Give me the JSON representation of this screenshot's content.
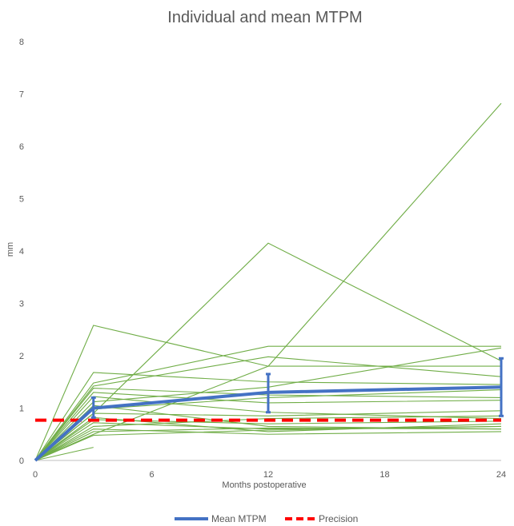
{
  "chart_data": {
    "type": "line",
    "title": "Individual and mean MTPM",
    "xlabel": "Months postoperative",
    "ylabel": "mm",
    "x_ticks": [
      0,
      6,
      12,
      18,
      24
    ],
    "y_ticks": [
      0,
      1,
      2,
      3,
      4,
      5,
      6,
      7,
      8
    ],
    "xlim": [
      0,
      24
    ],
    "ylim": [
      0,
      8
    ],
    "grid": false,
    "legend_position": "bottom",
    "individual_color": "#70ad47",
    "individual_series": [
      {
        "x": [
          0,
          3,
          12,
          24
        ],
        "y": [
          0,
          2.58,
          1.8,
          1.8
        ]
      },
      {
        "x": [
          0,
          3,
          12,
          24
        ],
        "y": [
          0,
          0.9,
          4.15,
          1.9
        ]
      },
      {
        "x": [
          0,
          3,
          12,
          24
        ],
        "y": [
          0,
          0.5,
          1.8,
          6.82
        ]
      },
      {
        "x": [
          0,
          3,
          12,
          24
        ],
        "y": [
          0,
          1.68,
          1.5,
          1.45
        ]
      },
      {
        "x": [
          0,
          3,
          12,
          24
        ],
        "y": [
          0,
          1.48,
          2.18,
          2.18
        ]
      },
      {
        "x": [
          0,
          3,
          12,
          24
        ],
        "y": [
          0,
          1.42,
          1.98,
          1.6
        ]
      },
      {
        "x": [
          0,
          3,
          12,
          24
        ],
        "y": [
          0,
          1.38,
          1.25,
          1.2
        ]
      },
      {
        "x": [
          0,
          3,
          12,
          24
        ],
        "y": [
          0,
          1.3,
          1.1,
          1.15
        ]
      },
      {
        "x": [
          0,
          3,
          12,
          24
        ],
        "y": [
          0,
          1.22,
          0.92,
          0.8
        ]
      },
      {
        "x": [
          0,
          3,
          12,
          24
        ],
        "y": [
          0,
          1.12,
          1.4,
          2.15
        ]
      },
      {
        "x": [
          0,
          3,
          12,
          24
        ],
        "y": [
          0,
          1.05,
          0.65,
          0.6
        ]
      },
      {
        "x": [
          0,
          3,
          12,
          24
        ],
        "y": [
          0,
          0.98,
          1.2,
          1.35
        ]
      },
      {
        "x": [
          0,
          3,
          12,
          24
        ],
        "y": [
          0,
          0.9,
          0.85,
          0.95
        ]
      },
      {
        "x": [
          0,
          3,
          12,
          24
        ],
        "y": [
          0,
          0.82,
          0.55,
          0.7
        ]
      },
      {
        "x": [
          0,
          3,
          12,
          24
        ],
        "y": [
          0,
          0.78,
          0.7,
          0.75
        ]
      },
      {
        "x": [
          0,
          3,
          12,
          24
        ],
        "y": [
          0,
          0.72,
          0.6,
          0.65
        ]
      },
      {
        "x": [
          0,
          3,
          12,
          24
        ],
        "y": [
          0,
          0.65,
          0.8,
          0.85
        ]
      },
      {
        "x": [
          0,
          3,
          12,
          24
        ],
        "y": [
          0,
          0.6,
          0.5,
          0.55
        ]
      },
      {
        "x": [
          0,
          3,
          12,
          24
        ],
        "y": [
          0,
          0.55,
          0.62,
          0.6
        ]
      },
      {
        "x": [
          0,
          3,
          12,
          24
        ],
        "y": [
          0,
          0.48,
          0.58,
          0.65
        ]
      },
      {
        "x": [
          0,
          3
        ],
        "y": [
          0,
          0.25
        ]
      }
    ],
    "series": [
      {
        "name": "Mean MTPM",
        "color": "#4472c4",
        "x": [
          0,
          3,
          12,
          24
        ],
        "y": [
          0,
          1.0,
          1.3,
          1.4
        ],
        "error_low": [
          0,
          0.82,
          0.92,
          0.85
        ],
        "error_high": [
          0,
          1.2,
          1.65,
          1.95
        ]
      },
      {
        "name": "Precision",
        "color": "#ff0000",
        "style": "dashed",
        "x": [
          0,
          24
        ],
        "y": [
          0.77,
          0.77
        ]
      }
    ]
  }
}
